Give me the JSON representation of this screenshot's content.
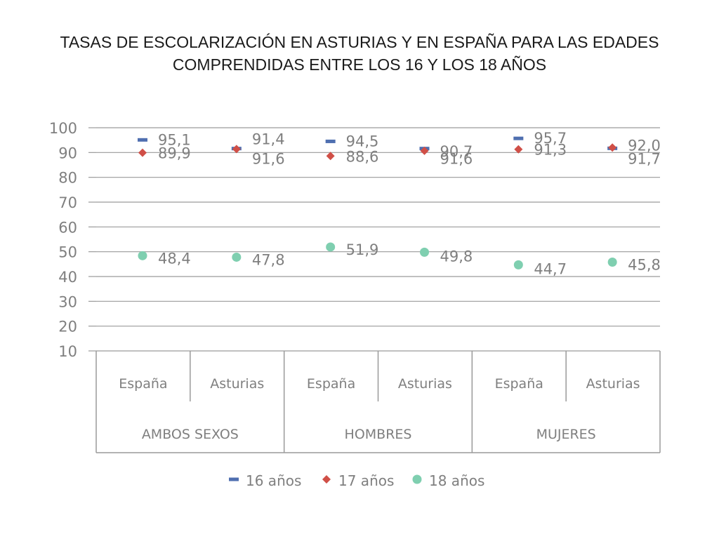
{
  "title_line1": "TASAS DE ESCOLARIZACIÓN EN ASTURIAS Y EN ESPAÑA PARA LAS EDADES",
  "title_line2": "COMPRENDIDAS ENTRE LOS 16 Y LOS 18 AÑOS",
  "chart_data": {
    "type": "scatter",
    "ylim": [
      10,
      100
    ],
    "yticks": [
      "100",
      "90",
      "80",
      "70",
      "60",
      "50",
      "40",
      "30",
      "20",
      "10"
    ],
    "grid": true,
    "legend_position": "bottom",
    "groups": [
      "AMBOS SEXOS",
      "HOMBRES",
      "MUJERES"
    ],
    "categories": [
      "España",
      "Asturias",
      "España",
      "Asturias",
      "España",
      "Asturias"
    ],
    "series": [
      {
        "name": "16 años",
        "marker": "dash",
        "color": "#4f6fb0",
        "values": [
          95.1,
          91.6,
          94.5,
          91.6,
          95.7,
          91.7
        ],
        "labels": [
          "95,1",
          "91,6",
          "94,5",
          "91,6",
          "95,7",
          "91,7"
        ]
      },
      {
        "name": "17 años",
        "marker": "diamond",
        "color": "#d04f47",
        "values": [
          89.9,
          91.4,
          88.6,
          90.7,
          91.3,
          92.0
        ],
        "labels": [
          "89,9",
          "91,4",
          "88,6",
          "90,7",
          "91,3",
          "92,0"
        ]
      },
      {
        "name": "18 años",
        "marker": "circle",
        "color": "#7fcfb0",
        "values": [
          48.4,
          47.8,
          51.9,
          49.8,
          44.7,
          45.8
        ],
        "labels": [
          "48,4",
          "47,8",
          "51,9",
          "49,8",
          "44,7",
          "45,8"
        ]
      }
    ]
  }
}
